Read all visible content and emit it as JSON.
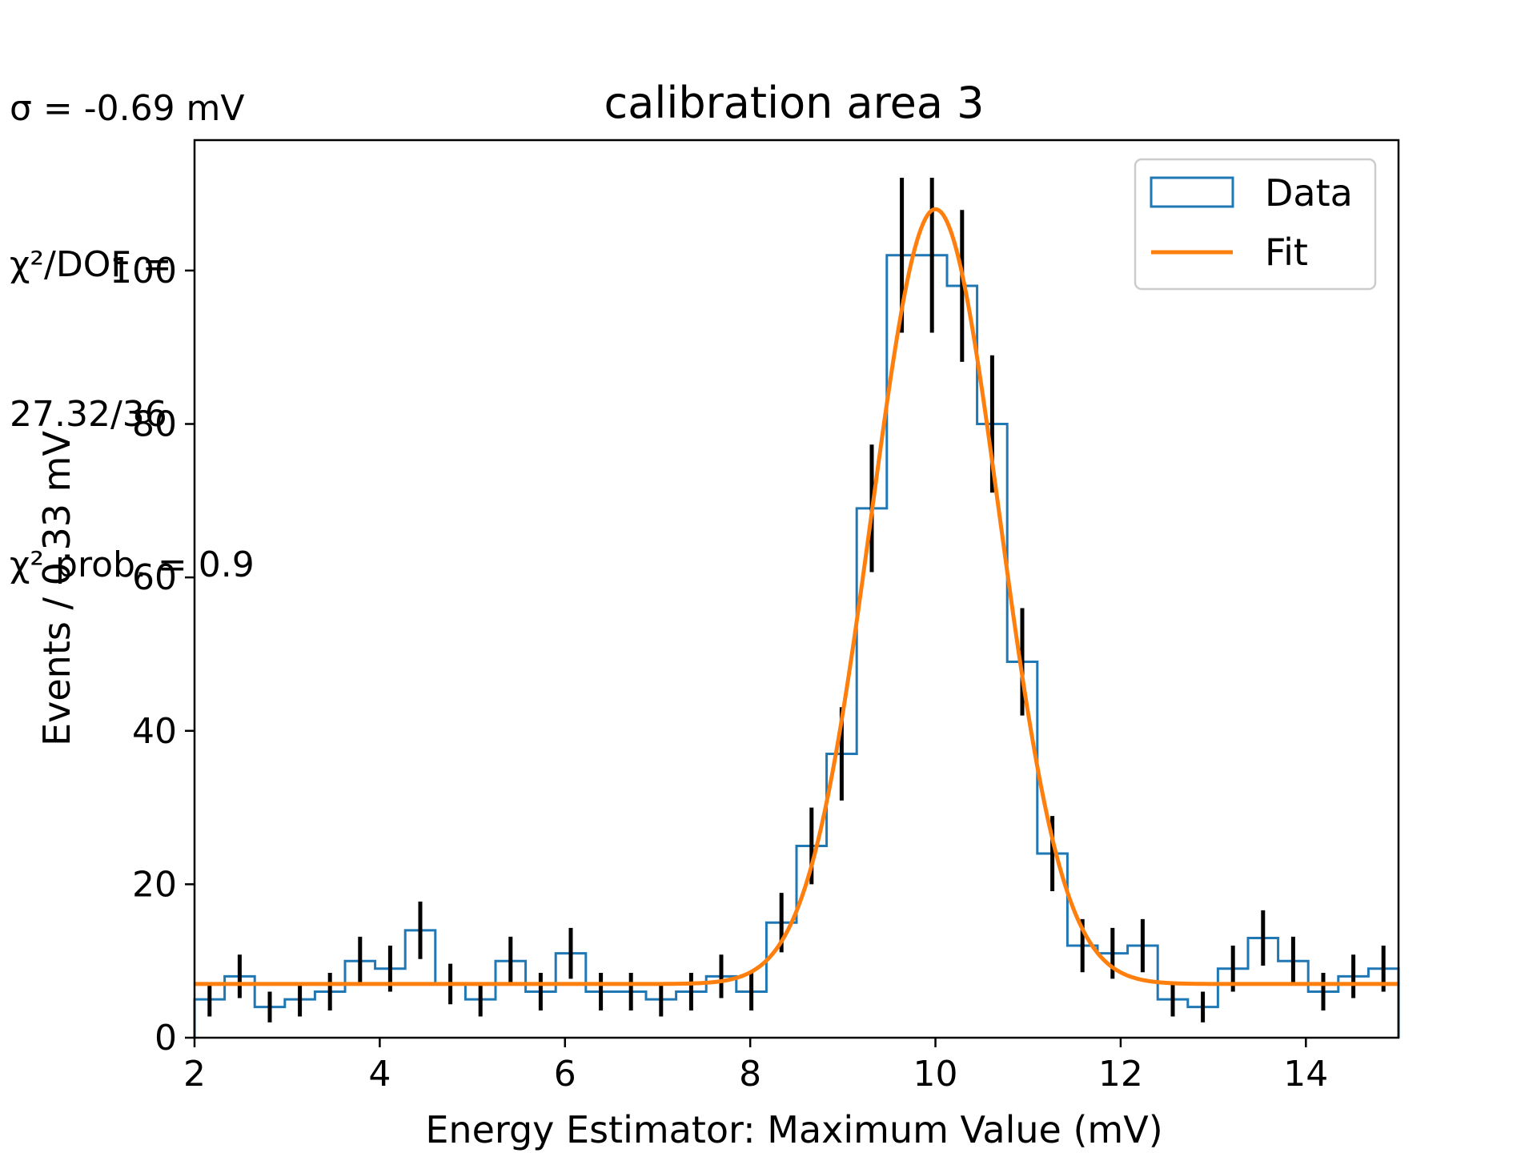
{
  "chart_data": {
    "type": "histogram",
    "title": "calibration area 3",
    "xlabel": "Energy Estimator: Maximum Value (mV)",
    "ylabel": "Events / 0.33 mV",
    "xlim": [
      2,
      15
    ],
    "ylim": [
      0,
      117
    ],
    "xticks": [
      2,
      4,
      6,
      8,
      10,
      12,
      14
    ],
    "yticks": [
      0,
      20,
      40,
      60,
      80,
      100
    ],
    "grid": false,
    "legend": {
      "placement": "top-right",
      "entries": [
        "Data",
        "Fit"
      ]
    },
    "bin_edges": [
      2.0,
      2.325,
      2.65,
      2.975,
      3.3,
      3.625,
      3.95,
      4.275,
      4.6,
      4.925,
      5.25,
      5.575,
      5.9,
      6.225,
      6.55,
      6.875,
      7.2,
      7.525,
      7.85,
      8.175,
      8.5,
      8.825,
      9.15,
      9.475,
      9.8,
      10.125,
      10.45,
      10.775,
      11.1,
      11.425,
      11.75,
      12.075,
      12.4,
      12.725,
      13.05,
      13.375,
      13.7,
      14.025,
      14.35,
      14.675,
      15.0
    ],
    "series": [
      {
        "name": "Data",
        "type": "step-histogram",
        "color": "#1f77b4",
        "values": [
          5,
          8,
          4,
          5,
          6,
          10,
          9,
          14,
          7,
          5,
          10,
          6,
          11,
          6,
          6,
          5,
          6,
          8,
          6,
          15,
          25,
          37,
          69,
          102,
          102,
          98,
          80,
          49,
          24,
          12,
          11,
          12,
          5,
          4,
          9,
          13,
          10,
          6,
          8,
          9
        ],
        "errors": "sqrt(N)"
      },
      {
        "name": "Fit",
        "type": "gaussian-plus-constant",
        "color": "#ff7f0e",
        "amplitude": 101,
        "mean": 10.0,
        "sigma": 0.69,
        "constant": 7
      }
    ],
    "errorbar_color": "#000000",
    "annotations": [
      "σ = -0.69 mV",
      "χ²/DOF =",
      "27.32/36",
      "χ² prob. = 0.9"
    ]
  },
  "annotations_text": {
    "sigma": "σ = -0.69 mV",
    "chi2dof_label": "χ²/DOF =",
    "chi2dof_value": "27.32/36",
    "chi2prob": "χ² prob. = 0.9"
  }
}
